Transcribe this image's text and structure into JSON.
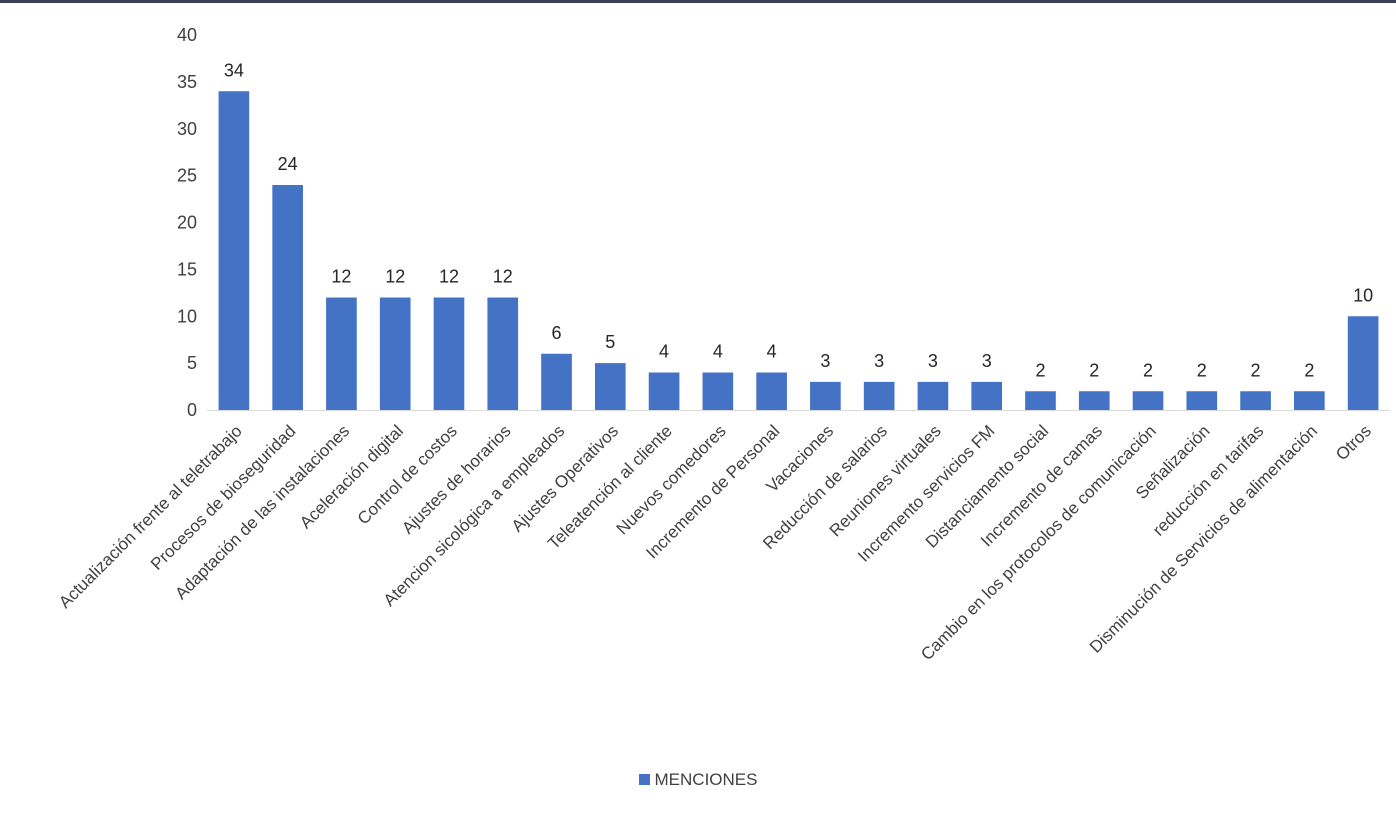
{
  "chart_data": {
    "type": "bar",
    "title": "",
    "xlabel": "",
    "ylabel": "",
    "ylim": [
      0,
      40
    ],
    "yticks": [
      0,
      5,
      10,
      15,
      20,
      25,
      30,
      35,
      40
    ],
    "grid": false,
    "legend_position": "bottom",
    "categories": [
      "Actualización frente al teletrabajo",
      "Procesos de bioseguridad",
      "Adaptación de las instalaciones",
      "Aceleración digital",
      "Control de costos",
      "Ajustes de horarios",
      "Atencion sicológica a empleados",
      "Ajustes Operativos",
      "Teleatención al cliente",
      "Nuevos comedores",
      "Incremento de Personal",
      "Vacaciones",
      "Reducción de salarios",
      "Reuniones virtuales",
      "Incremento servicios FM",
      "Distanciamento social",
      "Incremento de camas",
      "Cambio en los protocolos de comunicación",
      "Señalización",
      "reducción en tarifas",
      "Disminución de Servicios de alimentación",
      "Otros"
    ],
    "series": [
      {
        "name": "MENCIONES",
        "color": "#4472c4",
        "values": [
          34,
          24,
          12,
          12,
          12,
          12,
          6,
          5,
          4,
          4,
          4,
          3,
          3,
          3,
          3,
          2,
          2,
          2,
          2,
          2,
          2,
          10
        ]
      }
    ]
  }
}
